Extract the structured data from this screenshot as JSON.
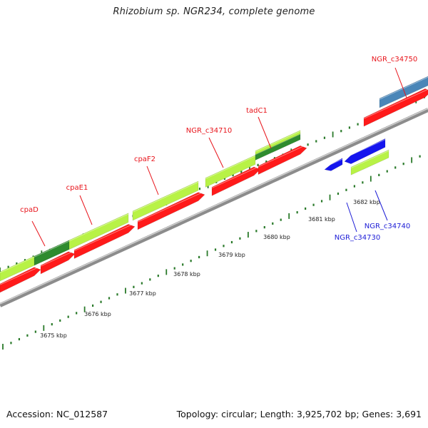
{
  "title": "Rhizobium sp. NGR234, complete genome",
  "footer": {
    "accession": "Accession: NC_012587",
    "topology": "Topology: circular; Length: 3,925,702 bp; Genes: 3,691"
  },
  "colors": {
    "label_forward": "#e8141b",
    "label_reverse": "#1c1cd6",
    "tick": "#2a7a2a",
    "backbone": "#8c8c8c",
    "gene_lightgreen": "#b8f246",
    "gene_darkgreen": "#2e8b2e",
    "gene_red": "#ff1a1a",
    "gene_blue": "#1515ee",
    "gene_steelblue": "#4a86b8"
  },
  "ruler": {
    "labels": [
      "3675 kbp",
      "3676 kbp",
      "3677 kbp",
      "3678 kbp",
      "3679 kbp",
      "3680 kbp",
      "3681 kbp",
      "3682 kbp"
    ]
  },
  "gene_labels": [
    {
      "name": "cpaD",
      "strand": "forward"
    },
    {
      "name": "cpaE1",
      "strand": "forward"
    },
    {
      "name": "cpaF2",
      "strand": "forward"
    },
    {
      "name": "NGR_c34710",
      "strand": "forward"
    },
    {
      "name": "tadC1",
      "strand": "forward"
    },
    {
      "name": "NGR_c34750",
      "strand": "forward"
    },
    {
      "name": "NGR_c34730",
      "strand": "reverse"
    },
    {
      "name": "NGR_c34740",
      "strand": "reverse"
    }
  ]
}
